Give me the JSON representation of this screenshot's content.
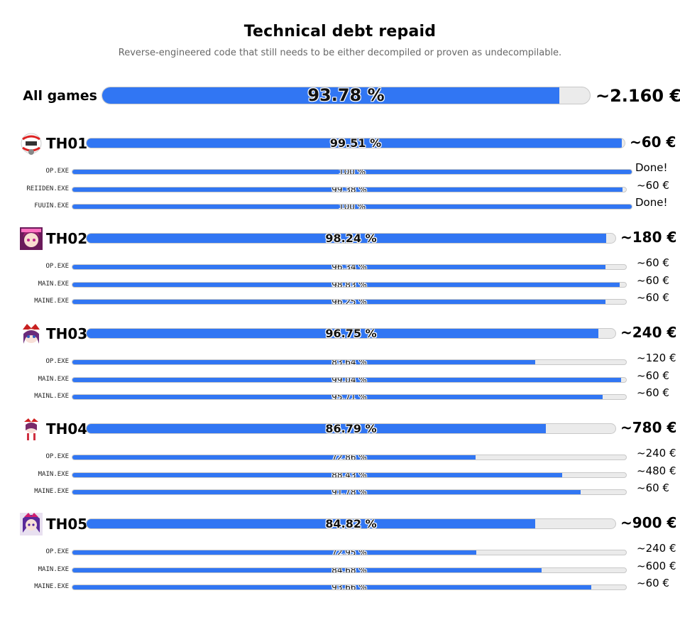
{
  "title": "Technical debt repaid",
  "subtitle": "Reverse-engineered code that still needs to be either decompiled or proven as undecompilable.",
  "colors": {
    "fill": "#3176f3",
    "track": "#ebebeb",
    "border": "#c8c8c8"
  },
  "chart_data": {
    "type": "bar",
    "orientation": "horizontal",
    "value_unit": "%",
    "xlim": [
      0,
      100
    ],
    "total": {
      "label": "All games",
      "value": 93.78,
      "value_label": "93.78 %",
      "amount": "~2.160 €"
    },
    "games": [
      {
        "name": "TH01",
        "icon": "th01-icon",
        "value": 99.51,
        "value_label": "99.51 %",
        "amount": "~60 €",
        "files": [
          {
            "name": "OP.EXE",
            "value": 100,
            "value_label": "100 %",
            "amount": "Done!"
          },
          {
            "name": "REIIDEN.EXE",
            "value": 99.38,
            "value_label": "99.38 %",
            "amount": "~60 €"
          },
          {
            "name": "FUUIN.EXE",
            "value": 100,
            "value_label": "100 %",
            "amount": "Done!"
          }
        ]
      },
      {
        "name": "TH02",
        "icon": "th02-icon",
        "value": 98.24,
        "value_label": "98.24 %",
        "amount": "~180 €",
        "files": [
          {
            "name": "OP.EXE",
            "value": 96.34,
            "value_label": "96.34 %",
            "amount": "~60 €"
          },
          {
            "name": "MAIN.EXE",
            "value": 98.83,
            "value_label": "98.83 %",
            "amount": "~60 €"
          },
          {
            "name": "MAINE.EXE",
            "value": 96.25,
            "value_label": "96.25 %",
            "amount": "~60 €"
          }
        ]
      },
      {
        "name": "TH03",
        "icon": "th03-icon",
        "value": 96.75,
        "value_label": "96.75 %",
        "amount": "~240 €",
        "files": [
          {
            "name": "OP.EXE",
            "value": 83.64,
            "value_label": "83.64 %",
            "amount": "~120 €"
          },
          {
            "name": "MAIN.EXE",
            "value": 99.04,
            "value_label": "99.04 %",
            "amount": "~60 €"
          },
          {
            "name": "MAINL.EXE",
            "value": 95.71,
            "value_label": "95.71 %",
            "amount": "~60 €"
          }
        ]
      },
      {
        "name": "TH04",
        "icon": "th04-icon",
        "value": 86.79,
        "value_label": "86.79 %",
        "amount": "~780 €",
        "files": [
          {
            "name": "OP.EXE",
            "value": 72.86,
            "value_label": "72.86 %",
            "amount": "~240 €"
          },
          {
            "name": "MAIN.EXE",
            "value": 88.43,
            "value_label": "88.43 %",
            "amount": "~480 €"
          },
          {
            "name": "MAINE.EXE",
            "value": 91.78,
            "value_label": "91.78 %",
            "amount": "~60 €"
          }
        ]
      },
      {
        "name": "TH05",
        "icon": "th05-icon",
        "value": 84.82,
        "value_label": "84.82 %",
        "amount": "~900 €",
        "files": [
          {
            "name": "OP.EXE",
            "value": 72.95,
            "value_label": "72.95 %",
            "amount": "~240 €"
          },
          {
            "name": "MAIN.EXE",
            "value": 84.68,
            "value_label": "84.68 %",
            "amount": "~600 €"
          },
          {
            "name": "MAINE.EXE",
            "value": 93.66,
            "value_label": "93.66 %",
            "amount": "~60 €"
          }
        ]
      }
    ]
  }
}
